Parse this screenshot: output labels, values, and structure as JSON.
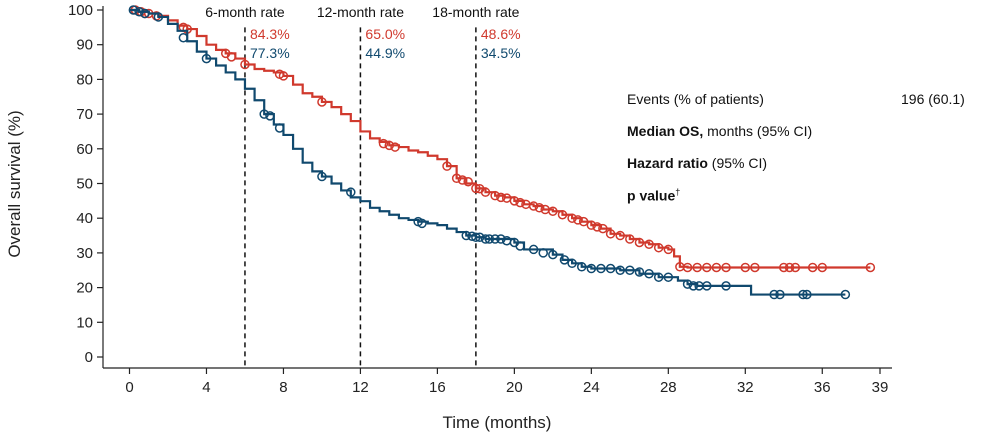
{
  "chart_data": {
    "type": "line",
    "title": "",
    "xlabel": "Time (months)",
    "ylabel": "Overall survival (%)",
    "xlim": [
      0,
      39
    ],
    "ylim": [
      0,
      100
    ],
    "x_ticks": [
      0,
      4,
      8,
      12,
      16,
      20,
      24,
      28,
      32,
      36,
      39
    ],
    "y_ticks": [
      0,
      10,
      20,
      30,
      40,
      50,
      60,
      70,
      80,
      90,
      100
    ],
    "grid": false,
    "colors": {
      "red": "#d0392d",
      "blue": "#10496e"
    },
    "landmarks": [
      {
        "time": 6,
        "label": "6-month rate",
        "red_value": "84.3%",
        "blue_value": "77.3%"
      },
      {
        "time": 12,
        "label": "12-month rate",
        "red_value": "65.0%",
        "blue_value": "44.9%"
      },
      {
        "time": 18,
        "label": "18-month rate",
        "red_value": "48.6%",
        "blue_value": "34.5%"
      }
    ],
    "series": [
      {
        "color": "#d0392d",
        "points": [
          [
            0,
            100
          ],
          [
            0.5,
            99.5
          ],
          [
            1,
            99
          ],
          [
            1.5,
            98.3
          ],
          [
            2,
            97
          ],
          [
            2.5,
            95.5
          ],
          [
            3,
            94.5
          ],
          [
            3.5,
            92.5
          ],
          [
            4,
            90
          ],
          [
            4.5,
            88.5
          ],
          [
            5,
            87.5
          ],
          [
            5.5,
            86
          ],
          [
            6,
            84.3
          ],
          [
            6.5,
            83
          ],
          [
            7,
            82.5
          ],
          [
            7.5,
            82
          ],
          [
            8,
            81
          ],
          [
            8.5,
            78.5
          ],
          [
            9,
            76
          ],
          [
            9.5,
            75
          ],
          [
            10,
            73.5
          ],
          [
            10.5,
            72
          ],
          [
            11,
            70
          ],
          [
            11.5,
            68
          ],
          [
            12,
            65
          ],
          [
            12.5,
            63
          ],
          [
            13,
            62
          ],
          [
            13.5,
            61
          ],
          [
            14,
            60.5
          ],
          [
            14.5,
            59.5
          ],
          [
            15,
            59
          ],
          [
            15.5,
            58
          ],
          [
            16,
            57
          ],
          [
            16.5,
            55
          ],
          [
            17,
            51.5
          ],
          [
            17.5,
            50
          ],
          [
            18,
            48.6
          ],
          [
            18.5,
            47.5
          ],
          [
            19,
            46.5
          ],
          [
            19.5,
            46
          ],
          [
            20,
            45
          ],
          [
            20.5,
            44
          ],
          [
            21,
            43.5
          ],
          [
            21.5,
            42.5
          ],
          [
            22,
            42
          ],
          [
            22.5,
            41
          ],
          [
            23,
            40
          ],
          [
            23.5,
            39
          ],
          [
            24,
            38
          ],
          [
            24.5,
            37
          ],
          [
            25,
            35.5
          ],
          [
            25.5,
            35
          ],
          [
            26,
            34
          ],
          [
            26.5,
            33
          ],
          [
            27,
            32.5
          ],
          [
            27.5,
            31.5
          ],
          [
            28,
            31
          ],
          [
            28.3,
            29
          ],
          [
            28.6,
            26
          ],
          [
            29,
            25.8
          ],
          [
            30,
            25.8
          ],
          [
            31,
            25.8
          ],
          [
            33,
            25.8
          ],
          [
            35,
            25.8
          ],
          [
            36,
            25.8
          ],
          [
            37,
            25.8
          ],
          [
            38.5,
            25.8
          ]
        ],
        "censored": [
          [
            0.3,
            100
          ],
          [
            0.6,
            99.5
          ],
          [
            0.8,
            99
          ],
          [
            1,
            99
          ],
          [
            1.4,
            98.3
          ],
          [
            2.8,
            95
          ],
          [
            3,
            94.5
          ],
          [
            5,
            87.5
          ],
          [
            5.3,
            86.5
          ],
          [
            6,
            84.3
          ],
          [
            7.8,
            81.5
          ],
          [
            8,
            81
          ],
          [
            10,
            73.5
          ],
          [
            13.2,
            61.5
          ],
          [
            13.5,
            61
          ],
          [
            13.8,
            60.5
          ],
          [
            16.5,
            55
          ],
          [
            17,
            51.5
          ],
          [
            17.3,
            51
          ],
          [
            17.6,
            50.5
          ],
          [
            18,
            48.6
          ],
          [
            18.2,
            48.5
          ],
          [
            18.5,
            47.5
          ],
          [
            19,
            46.5
          ],
          [
            19.3,
            46
          ],
          [
            19.6,
            45.8
          ],
          [
            20,
            45
          ],
          [
            20.3,
            44.5
          ],
          [
            20.6,
            44
          ],
          [
            21,
            43.5
          ],
          [
            21.3,
            43
          ],
          [
            21.6,
            42.5
          ],
          [
            22,
            42
          ],
          [
            22.5,
            41
          ],
          [
            23,
            40
          ],
          [
            23.3,
            39.5
          ],
          [
            23.6,
            39
          ],
          [
            24,
            38
          ],
          [
            24.3,
            37.5
          ],
          [
            24.6,
            37
          ],
          [
            25,
            35.5
          ],
          [
            25.5,
            35
          ],
          [
            26,
            34
          ],
          [
            26.5,
            33
          ],
          [
            27,
            32.5
          ],
          [
            27.5,
            31.5
          ],
          [
            28,
            31
          ],
          [
            28.6,
            26
          ],
          [
            29,
            25.8
          ],
          [
            29.5,
            25.8
          ],
          [
            30,
            25.8
          ],
          [
            30.5,
            25.8
          ],
          [
            31,
            25.8
          ],
          [
            32,
            25.8
          ],
          [
            32.5,
            25.8
          ],
          [
            34,
            25.8
          ],
          [
            34.3,
            25.8
          ],
          [
            34.6,
            25.8
          ],
          [
            35.5,
            25.8
          ],
          [
            36,
            25.8
          ],
          [
            38.5,
            25.8
          ]
        ]
      },
      {
        "color": "#10496e",
        "points": [
          [
            0,
            100
          ],
          [
            0.5,
            99.5
          ],
          [
            1,
            99
          ],
          [
            1.5,
            98
          ],
          [
            2,
            96
          ],
          [
            2.5,
            94
          ],
          [
            3,
            91
          ],
          [
            3.5,
            88
          ],
          [
            4,
            86
          ],
          [
            4.5,
            84
          ],
          [
            5,
            82
          ],
          [
            5.5,
            80
          ],
          [
            6,
            77.3
          ],
          [
            6.5,
            74
          ],
          [
            7,
            70
          ],
          [
            7.5,
            67
          ],
          [
            8,
            64
          ],
          [
            8.5,
            60
          ],
          [
            9,
            56
          ],
          [
            9.5,
            53.5
          ],
          [
            10,
            52
          ],
          [
            10.5,
            50
          ],
          [
            11,
            48
          ],
          [
            11.5,
            46
          ],
          [
            12,
            44.9
          ],
          [
            12.5,
            43
          ],
          [
            13,
            42
          ],
          [
            13.5,
            41
          ],
          [
            14,
            40
          ],
          [
            14.5,
            39.5
          ],
          [
            15,
            39
          ],
          [
            15.5,
            38.5
          ],
          [
            16,
            38
          ],
          [
            16.5,
            37
          ],
          [
            17,
            36
          ],
          [
            17.5,
            35
          ],
          [
            18,
            34.5
          ],
          [
            18.5,
            34
          ],
          [
            19,
            34
          ],
          [
            19.5,
            34
          ],
          [
            20,
            33
          ],
          [
            20.5,
            31
          ],
          [
            21,
            31
          ],
          [
            22,
            29.5
          ],
          [
            22.5,
            28
          ],
          [
            23,
            27
          ],
          [
            23.5,
            26
          ],
          [
            24,
            25.5
          ],
          [
            25,
            25.5
          ],
          [
            25.5,
            25
          ],
          [
            26,
            25
          ],
          [
            26.5,
            24
          ],
          [
            27,
            24
          ],
          [
            27.5,
            23
          ],
          [
            28,
            23
          ],
          [
            28.5,
            22
          ],
          [
            29,
            21
          ],
          [
            29.5,
            20.5
          ],
          [
            30,
            20.5
          ],
          [
            31,
            20.5
          ],
          [
            32,
            20.5
          ],
          [
            32.3,
            18
          ],
          [
            33,
            18
          ],
          [
            34,
            18
          ],
          [
            35,
            18
          ],
          [
            36,
            18
          ],
          [
            37.2,
            18
          ]
        ],
        "censored": [
          [
            0.2,
            100
          ],
          [
            0.5,
            99.5
          ],
          [
            0.8,
            99
          ],
          [
            1.5,
            98
          ],
          [
            2.8,
            92
          ],
          [
            4,
            86
          ],
          [
            7,
            70
          ],
          [
            7.3,
            69.5
          ],
          [
            7.8,
            66
          ],
          [
            10,
            52
          ],
          [
            11.5,
            47.5
          ],
          [
            15,
            39
          ],
          [
            15.2,
            38.5
          ],
          [
            17.5,
            35
          ],
          [
            17.8,
            34.8
          ],
          [
            18,
            34.5
          ],
          [
            18.2,
            34.5
          ],
          [
            18.5,
            34
          ],
          [
            18.7,
            34
          ],
          [
            19,
            34
          ],
          [
            19.3,
            34
          ],
          [
            19.6,
            33.5
          ],
          [
            20,
            33
          ],
          [
            20.3,
            32
          ],
          [
            21,
            31
          ],
          [
            21.5,
            30
          ],
          [
            22,
            29.5
          ],
          [
            22.6,
            28
          ],
          [
            23,
            27
          ],
          [
            23.5,
            26
          ],
          [
            24,
            25.5
          ],
          [
            24.5,
            25.5
          ],
          [
            25,
            25.5
          ],
          [
            25.5,
            25
          ],
          [
            26,
            25
          ],
          [
            26.5,
            24.5
          ],
          [
            27,
            24
          ],
          [
            27.5,
            23
          ],
          [
            28,
            23
          ],
          [
            29,
            21
          ],
          [
            29.3,
            20.5
          ],
          [
            29.6,
            20.5
          ],
          [
            30,
            20.5
          ],
          [
            31,
            20.5
          ],
          [
            33.5,
            18
          ],
          [
            33.8,
            18
          ],
          [
            35,
            18
          ],
          [
            35.2,
            18
          ],
          [
            37.2,
            18
          ]
        ]
      }
    ]
  },
  "stats_panel": {
    "events_label": "Events (% of patients)",
    "events_value": "196 (60.1)",
    "median_os_bold": "Median OS,",
    "median_os_rest": " months (95% CI)",
    "hazard_bold": "Hazard ratio",
    "hazard_rest": " (95% CI)",
    "pvalue_bold": "p value",
    "pvalue_mark": "†"
  }
}
